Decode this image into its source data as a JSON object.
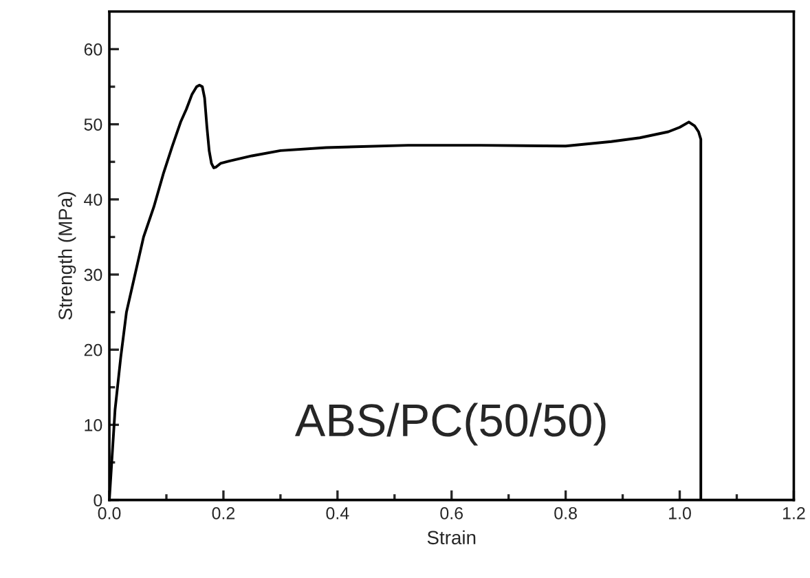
{
  "chart_data": {
    "type": "line",
    "xlabel": "Strain",
    "ylabel": "Strength (MPa)",
    "x": [
      0.0,
      0.004,
      0.01,
      0.02,
      0.03,
      0.045,
      0.06,
      0.078,
      0.095,
      0.11,
      0.125,
      0.135,
      0.145,
      0.153,
      0.158,
      0.163,
      0.167,
      0.171,
      0.175,
      0.179,
      0.183,
      0.187,
      0.195,
      0.21,
      0.25,
      0.3,
      0.38,
      0.524,
      0.65,
      0.8,
      0.88,
      0.93,
      0.98,
      1.0,
      1.016,
      1.026,
      1.033,
      1.037,
      1.037
    ],
    "series": [
      {
        "color": "#000000",
        "values": [
          0,
          4.8,
          12,
          19,
          25,
          30,
          35,
          39,
          43.5,
          47,
          50.3,
          52,
          54,
          55,
          55.2,
          55,
          53.5,
          49.7,
          46.5,
          44.8,
          44.2,
          44.3,
          44.8,
          45.1,
          45.8,
          46.5,
          46.9,
          47.2,
          47.2,
          47.1,
          47.7,
          48.2,
          49,
          49.6,
          50.3,
          49.8,
          49,
          48,
          0
        ]
      }
    ],
    "annotations": [
      "ABS/PC(50/50)"
    ],
    "xlim": [
      0,
      1.2
    ],
    "ylim": [
      0,
      65
    ],
    "xticks": [
      {
        "value": 0,
        "label": "0.0"
      },
      0.2,
      0.4,
      0.6,
      0.8,
      {
        "value": 1.0,
        "label": "1.0"
      },
      {
        "value": 1.2,
        "label": "1.2"
      }
    ],
    "yticks": [
      0,
      10,
      20,
      30,
      40,
      50,
      60
    ],
    "grid": false,
    "legend": false,
    "marker": "none",
    "line_style": "solid"
  }
}
